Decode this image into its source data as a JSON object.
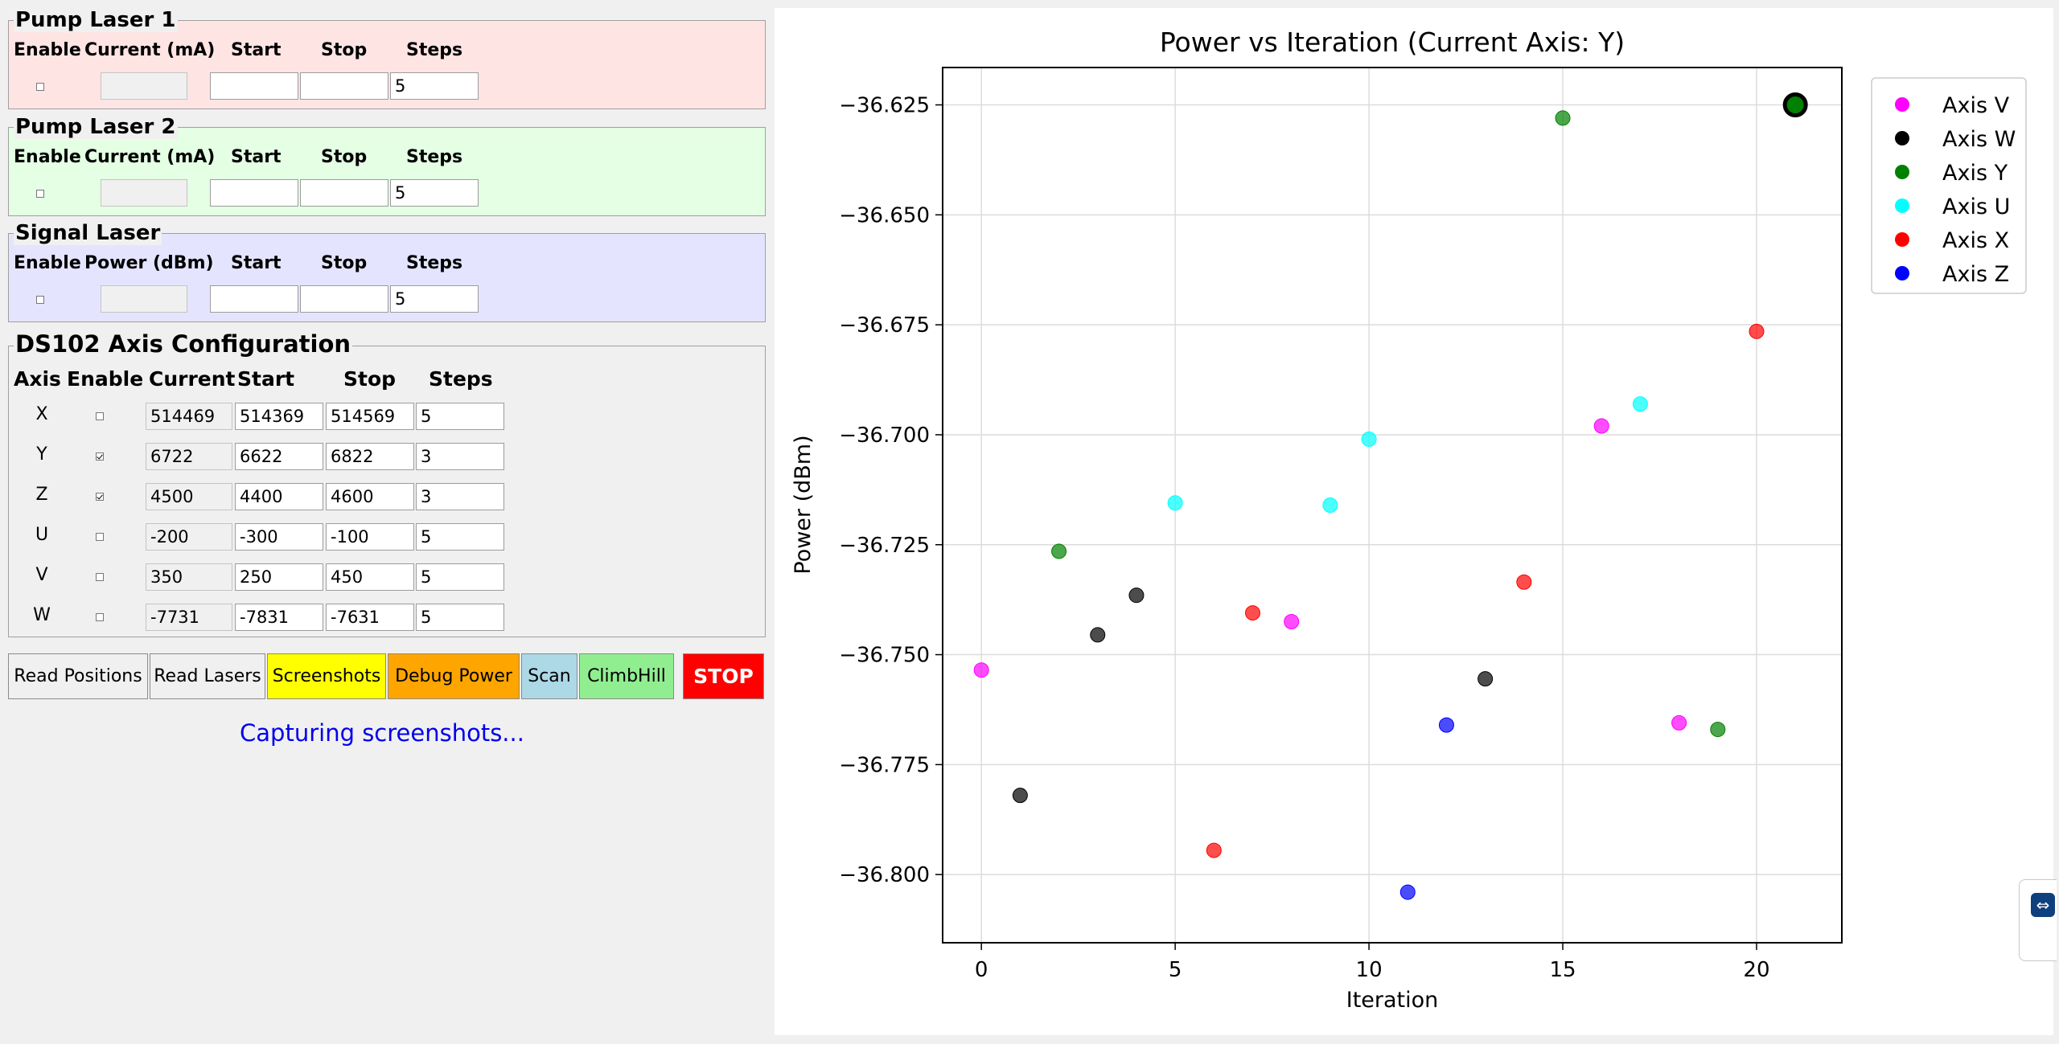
{
  "pump1": {
    "title": "Pump Laser 1",
    "headers": [
      "Enable",
      "Current (mA)",
      "Start",
      "Stop",
      "Steps"
    ],
    "enabled": false,
    "current": "",
    "start": "",
    "stop": "",
    "steps": "5",
    "bg": "#ffe4e4"
  },
  "pump2": {
    "title": "Pump Laser 2",
    "headers": [
      "Enable",
      "Current (mA)",
      "Start",
      "Stop",
      "Steps"
    ],
    "enabled": false,
    "current": "",
    "start": "",
    "stop": "",
    "steps": "5",
    "bg": "#e4ffe4"
  },
  "signal": {
    "title": "Signal Laser",
    "headers": [
      "Enable",
      "Power (dBm)",
      "Start",
      "Stop",
      "Steps"
    ],
    "enabled": false,
    "current": "",
    "start": "",
    "stop": "",
    "steps": "5",
    "bg": "#e4e4ff"
  },
  "ds102": {
    "title": "DS102 Axis Configuration",
    "headers": [
      "Axis",
      "Enable",
      "Current",
      "Start",
      "Stop",
      "Steps"
    ],
    "rows": [
      {
        "axis": "X",
        "enabled": false,
        "current": "514469",
        "start": "514369",
        "stop": "514569",
        "steps": "5"
      },
      {
        "axis": "Y",
        "enabled": true,
        "current": "6722",
        "start": "6622",
        "stop": "6822",
        "steps": "3"
      },
      {
        "axis": "Z",
        "enabled": true,
        "current": "4500",
        "start": "4400",
        "stop": "4600",
        "steps": "3"
      },
      {
        "axis": "U",
        "enabled": false,
        "current": "-200",
        "start": "-300",
        "stop": "-100",
        "steps": "5"
      },
      {
        "axis": "V",
        "enabled": false,
        "current": "350",
        "start": "250",
        "stop": "450",
        "steps": "5"
      },
      {
        "axis": "W",
        "enabled": false,
        "current": "-7731",
        "start": "-7831",
        "stop": "-7631",
        "steps": "5"
      }
    ]
  },
  "buttons": [
    {
      "name": "read-positions-button",
      "label": "Read Positions",
      "color": "#f0f0f0"
    },
    {
      "name": "read-lasers-button",
      "label": "Read Lasers",
      "color": "#f0f0f0"
    },
    {
      "name": "screenshots-button",
      "label": "Screenshots",
      "color": "#ffff00"
    },
    {
      "name": "debug-power-button",
      "label": "Debug Power",
      "color": "#ffa500"
    },
    {
      "name": "scan-button",
      "label": "Scan",
      "color": "#add8e6"
    },
    {
      "name": "climbhill-button",
      "label": "ClimbHill",
      "color": "#90ee90"
    },
    {
      "name": "stop-button",
      "label": "STOP",
      "color": "#ff0000"
    }
  ],
  "status_text": "Capturing screenshots...",
  "chart_data": {
    "type": "scatter",
    "title": "Power vs Iteration (Current Axis: Y)",
    "xlabel": "Iteration",
    "ylabel": "Power (dBm)",
    "xlim": [
      -1,
      22.2
    ],
    "ylim": [
      -36.8155,
      -36.6165
    ],
    "xticks": [
      0,
      5,
      10,
      15,
      20
    ],
    "yticks": [
      -36.625,
      -36.65,
      -36.675,
      -36.7,
      -36.725,
      -36.75,
      -36.775,
      -36.8
    ],
    "ytick_labels": [
      "−36.625",
      "−36.650",
      "−36.675",
      "−36.700",
      "−36.725",
      "−36.750",
      "−36.775",
      "−36.800"
    ],
    "grid": true,
    "legend_position": "upper-right-outside",
    "series": [
      {
        "name": "Axis V",
        "color": "#ff00ff",
        "points": [
          [
            0,
            -36.7535
          ],
          [
            8,
            -36.7425
          ],
          [
            16,
            -36.698
          ],
          [
            18,
            -36.7655
          ]
        ]
      },
      {
        "name": "Axis W",
        "color": "#000000",
        "points": [
          [
            1,
            -36.782
          ],
          [
            3,
            -36.7455
          ],
          [
            4,
            -36.7365
          ],
          [
            13,
            -36.7555
          ]
        ]
      },
      {
        "name": "Axis Y",
        "color": "#008000",
        "points": [
          [
            2,
            -36.7265
          ],
          [
            15,
            -36.628
          ],
          [
            19,
            -36.767
          ]
        ]
      },
      {
        "name": "Axis U",
        "color": "#00ffff",
        "points": [
          [
            5,
            -36.7155
          ],
          [
            9,
            -36.716
          ],
          [
            10,
            -36.701
          ],
          [
            17,
            -36.693
          ]
        ]
      },
      {
        "name": "Axis X",
        "color": "#ff0000",
        "points": [
          [
            6,
            -36.7945
          ],
          [
            7,
            -36.7405
          ],
          [
            14,
            -36.7335
          ],
          [
            20,
            -36.6765
          ]
        ]
      },
      {
        "name": "Axis Z",
        "color": "#0000ff",
        "points": [
          [
            11,
            -36.804
          ],
          [
            12,
            -36.766
          ]
        ]
      }
    ],
    "highlight": {
      "series": "Axis Y",
      "x": 21,
      "y": -36.625
    }
  }
}
